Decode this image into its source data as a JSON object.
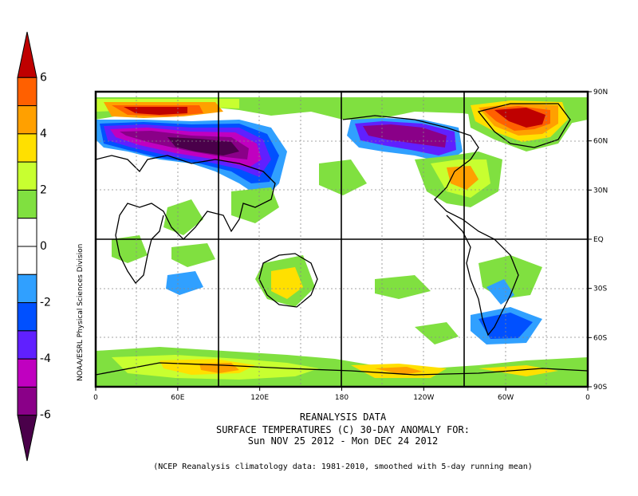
{
  "caption": {
    "title": "REANALYSIS DATA",
    "line2": "SURFACE TEMPERATURES (C)   30-DAY ANOMALY FOR:",
    "line3": "Sun NOV 25 2012 - Mon DEC 24 2012",
    "note": "(NCEP Reanalysis climatology data: 1981-2010, smoothed with 5-day running mean)"
  },
  "credit": "NOAA/ESRL Physical Sciences Division",
  "colorbar": {
    "labels": [
      "6",
      "4",
      "2",
      "0",
      "-2",
      "-4",
      "-6"
    ],
    "colors": [
      "#bf0000",
      "#ff6000",
      "#ffa000",
      "#ffe000",
      "#c8ff30",
      "#80e040",
      "#ffffff",
      "#ffffff",
      "#30a0ff",
      "#0050ff",
      "#6020ff",
      "#c000c0",
      "#8a0088",
      "#4a004a"
    ]
  },
  "map": {
    "x_ticks": [
      "0",
      "60E",
      "120E",
      "180",
      "120W",
      "60W",
      "0"
    ],
    "y_ticks": [
      "90N",
      "60N",
      "30N",
      "EQ",
      "30S",
      "60S",
      "90S"
    ],
    "anomaly_colors": {
      "deep_cold": "#4a004a",
      "very_cold": "#8a0088",
      "cold_m4": "#c000c0",
      "cold_m3": "#6020ff",
      "cold_m2": "#0050ff",
      "cool": "#30a0ff",
      "warm_1": "#80e040",
      "warm_2": "#c8ff30",
      "warm_3": "#ffe000",
      "warm_4": "#ffa000",
      "hot_5": "#ff6000",
      "hot_6": "#bf0000"
    }
  }
}
